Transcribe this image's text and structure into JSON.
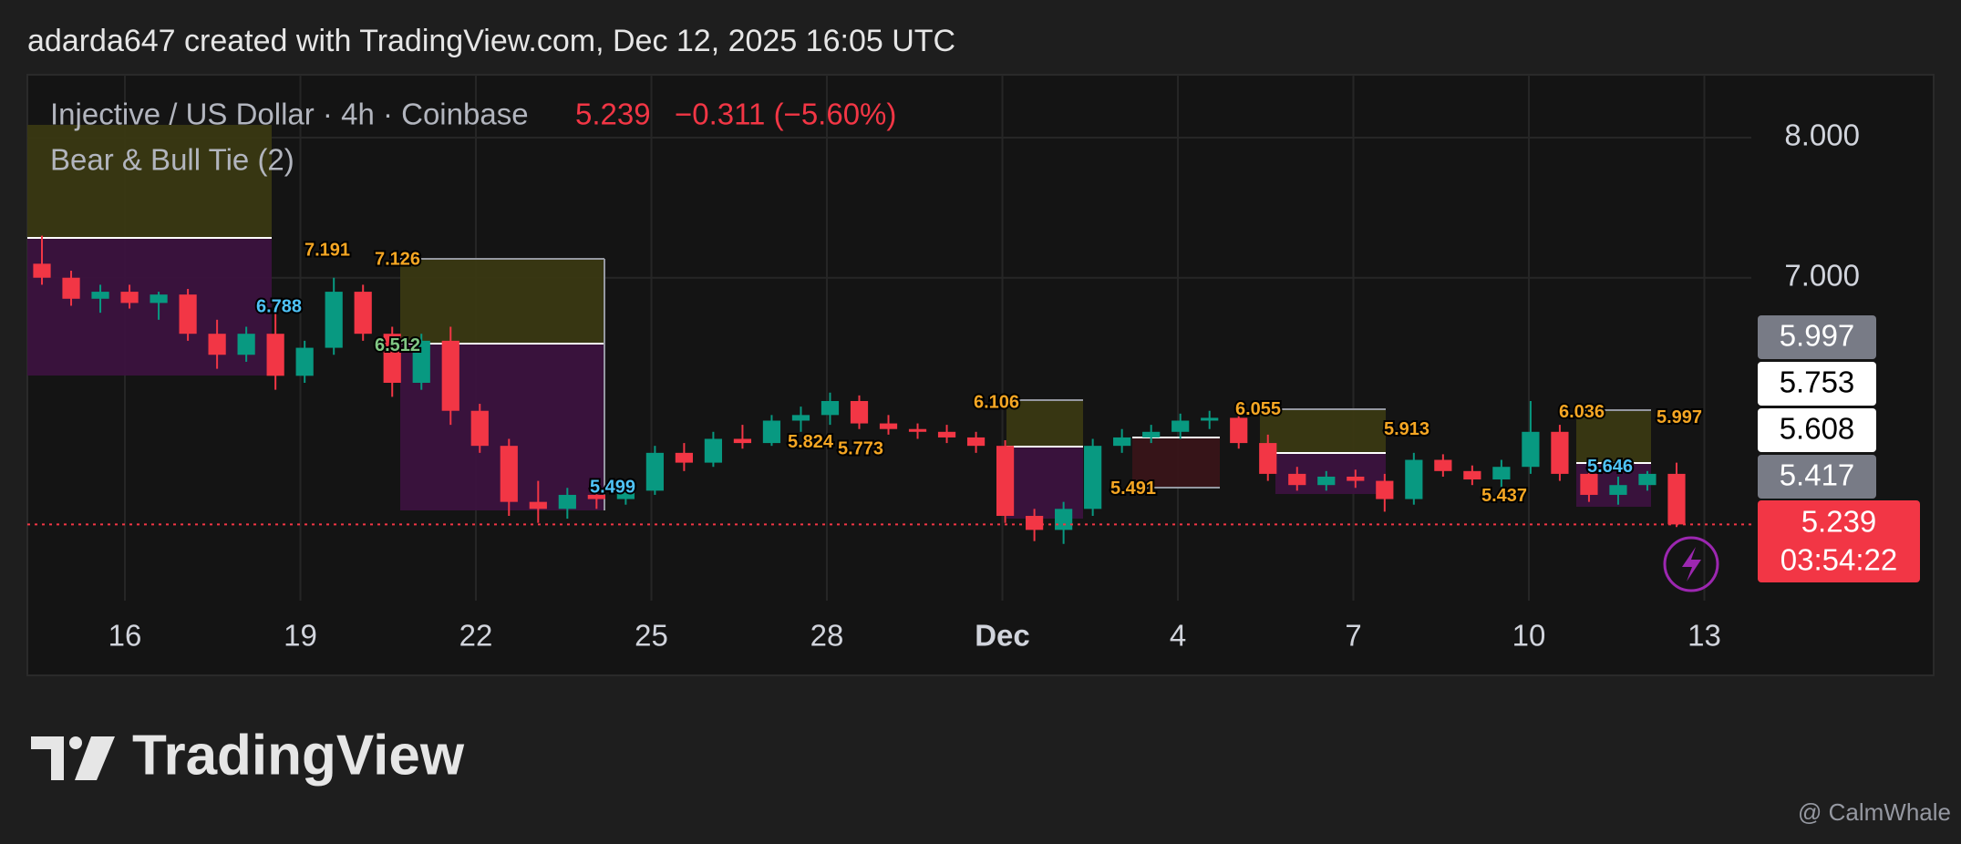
{
  "header": "adarda647 created with TradingView.com, Dec 12, 2025 16:05 UTC",
  "chart_data": {
    "type": "candlestick",
    "title": "Injective / US Dollar · 4h · Coinbase",
    "change": "−0.311 (−5.60%)",
    "indicator": "Bear & Bull Tie (2)",
    "last_price": 5.239,
    "countdown": "03:54:22",
    "open": [
      7.1,
      7.0,
      6.85,
      6.9,
      6.82,
      6.88,
      6.6,
      6.45,
      6.6,
      6.3,
      6.5,
      6.9,
      6.6,
      6.25,
      6.55,
      6.05,
      5.8,
      5.4,
      5.35,
      5.45,
      5.42,
      5.48,
      5.75,
      5.68,
      5.85,
      5.82,
      5.98,
      6.02,
      6.12,
      5.96,
      5.92,
      5.9,
      5.86,
      5.8,
      5.3,
      5.2,
      5.35,
      5.8,
      5.86,
      5.9,
      5.98,
      6.0,
      5.82,
      5.6,
      5.52,
      5.58,
      5.55,
      5.42,
      5.7,
      5.62,
      5.56,
      5.65,
      5.9,
      5.6,
      5.45,
      5.52,
      5.6
    ],
    "high": [
      7.3,
      7.05,
      6.95,
      6.95,
      6.9,
      6.92,
      6.7,
      6.65,
      6.75,
      6.55,
      7.0,
      6.95,
      6.65,
      6.6,
      6.65,
      6.1,
      5.85,
      5.55,
      5.5,
      5.52,
      5.55,
      5.8,
      5.82,
      5.9,
      5.95,
      6.02,
      6.08,
      6.18,
      6.16,
      6.02,
      5.96,
      5.95,
      5.9,
      5.84,
      5.35,
      5.4,
      5.85,
      5.92,
      5.95,
      6.03,
      6.05,
      6.04,
      5.88,
      5.65,
      5.62,
      5.63,
      5.6,
      5.75,
      5.74,
      5.66,
      5.7,
      6.12,
      5.95,
      5.65,
      5.58,
      5.62,
      5.68
    ],
    "low": [
      6.95,
      6.8,
      6.75,
      6.78,
      6.7,
      6.55,
      6.35,
      6.4,
      6.2,
      6.25,
      6.45,
      6.55,
      6.15,
      6.2,
      5.95,
      5.75,
      5.3,
      5.25,
      5.28,
      5.35,
      5.38,
      5.45,
      5.62,
      5.65,
      5.78,
      5.8,
      5.9,
      5.95,
      5.92,
      5.88,
      5.85,
      5.82,
      5.75,
      5.25,
      5.12,
      5.1,
      5.3,
      5.75,
      5.82,
      5.85,
      5.92,
      5.78,
      5.55,
      5.48,
      5.48,
      5.5,
      5.33,
      5.38,
      5.58,
      5.52,
      5.5,
      5.6,
      5.55,
      5.4,
      5.38,
      5.48,
      5.22
    ],
    "close": [
      7.0,
      6.85,
      6.9,
      6.82,
      6.88,
      6.6,
      6.45,
      6.6,
      6.3,
      6.5,
      6.9,
      6.6,
      6.25,
      6.55,
      6.05,
      5.8,
      5.4,
      5.35,
      5.45,
      5.42,
      5.48,
      5.75,
      5.68,
      5.85,
      5.82,
      5.98,
      6.02,
      6.12,
      5.96,
      5.92,
      5.9,
      5.86,
      5.8,
      5.3,
      5.2,
      5.35,
      5.8,
      5.86,
      5.9,
      5.98,
      6.0,
      5.82,
      5.6,
      5.52,
      5.58,
      5.55,
      5.42,
      5.7,
      5.62,
      5.56,
      5.65,
      5.9,
      5.6,
      5.45,
      5.52,
      5.6,
      5.239
    ],
    "up_color": "#089981",
    "down_color": "#f23645",
    "ylim": [
      4.695,
      8.449
    ],
    "yticks": [
      {
        "value": 8,
        "label": "8.000"
      },
      {
        "value": 7,
        "label": "7.000"
      }
    ],
    "xtick_labels": [
      "16",
      "19",
      "22",
      "25",
      "28",
      "Dec",
      "4",
      "7",
      "10",
      "13"
    ],
    "grid": true,
    "price_tags": [
      {
        "value": 5.997,
        "color": "#787b86",
        "text_color": "#ffffff"
      },
      {
        "value": 5.753,
        "color": "#ffffff",
        "text_color": "#000000"
      },
      {
        "value": 5.608,
        "color": "#ffffff",
        "text_color": "#000000"
      },
      {
        "value": 5.417,
        "color": "#787b86",
        "text_color": "#ffffff"
      }
    ],
    "level_labels": [
      {
        "value": 7.191,
        "color": "#f5a623"
      },
      {
        "value": 7.126,
        "color": "#f5a623"
      },
      {
        "value": 6.788,
        "color": "#4fc3f7"
      },
      {
        "value": 6.512,
        "color": "#81c784"
      },
      {
        "value": 5.499,
        "color": "#4fc3f7"
      },
      {
        "value": 6.106,
        "color": "#f5a623"
      },
      {
        "value": 5.824,
        "color": "#f5a623"
      },
      {
        "value": 5.773,
        "color": "#f5a623"
      },
      {
        "value": 6.055,
        "color": "#f5a623"
      },
      {
        "value": 5.491,
        "color": "#f5a623"
      },
      {
        "value": 5.913,
        "color": "#f5a623"
      },
      {
        "value": 5.437,
        "color": "#f5a623"
      },
      {
        "value": 6.036,
        "color": "#f5a623"
      },
      {
        "value": 5.997,
        "color": "#f5a623"
      },
      {
        "value": 5.646,
        "color": "#4fc3f7"
      }
    ]
  },
  "branding": {
    "logo": "TradingView",
    "credit": "@ CalmWhale"
  }
}
